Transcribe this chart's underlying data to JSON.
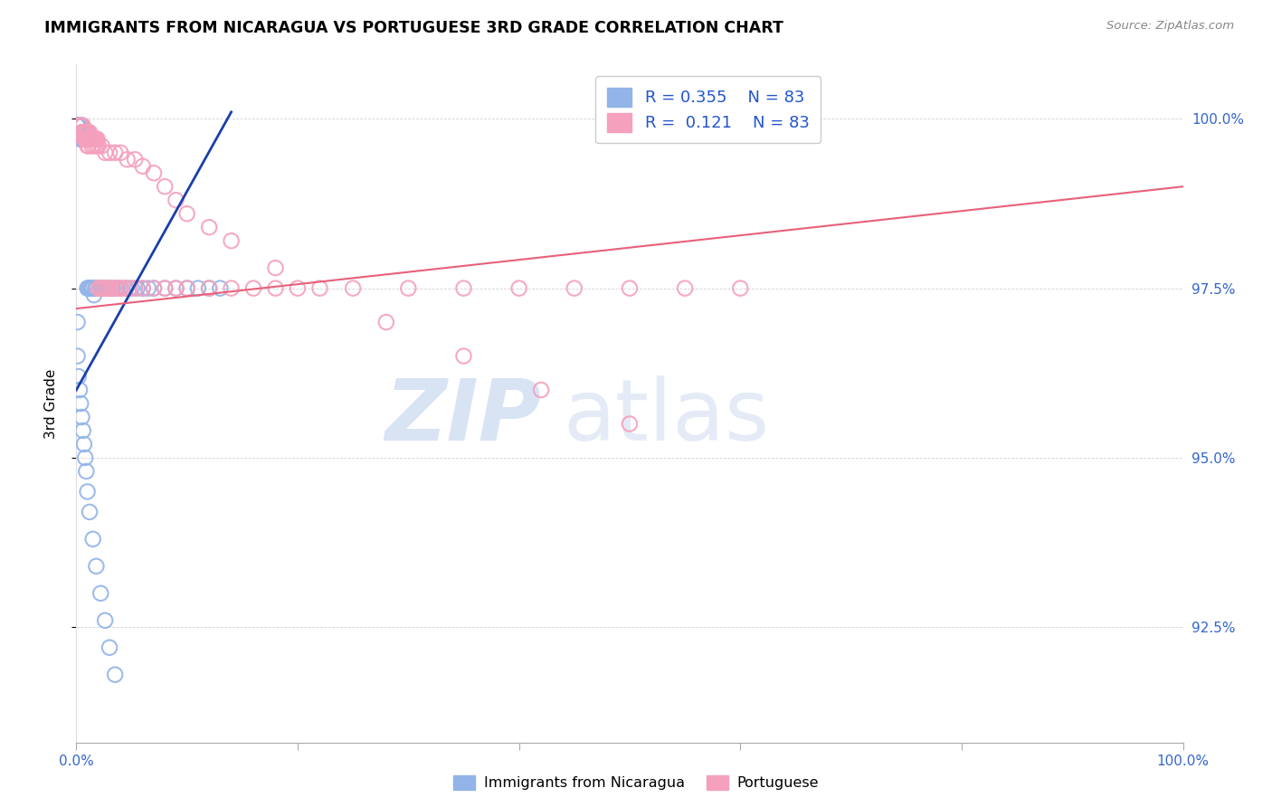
{
  "title": "IMMIGRANTS FROM NICARAGUA VS PORTUGUESE 3RD GRADE CORRELATION CHART",
  "source": "Source: ZipAtlas.com",
  "ylabel": "3rd Grade",
  "yticks": [
    "100.0%",
    "97.5%",
    "95.0%",
    "92.5%"
  ],
  "ytick_values": [
    1.0,
    0.975,
    0.95,
    0.925
  ],
  "xmin": 0.0,
  "xmax": 1.0,
  "ymin": 0.908,
  "ymax": 1.008,
  "legend_label1": "Immigrants from Nicaragua",
  "legend_label2": "Portuguese",
  "color_blue": "#92B4E8",
  "color_pink": "#F5A0BC",
  "color_trend_blue": "#1A3FAA",
  "color_trend_pink": "#E8607A",
  "watermark_zip": "ZIP",
  "watermark_atlas": "atlas",
  "blue_x": [
    0.001,
    0.001,
    0.001,
    0.001,
    0.002,
    0.002,
    0.002,
    0.002,
    0.003,
    0.003,
    0.003,
    0.003,
    0.003,
    0.003,
    0.003,
    0.003,
    0.004,
    0.004,
    0.004,
    0.004,
    0.005,
    0.005,
    0.005,
    0.005,
    0.005,
    0.006,
    0.006,
    0.006,
    0.007,
    0.007,
    0.007,
    0.008,
    0.008,
    0.009,
    0.009,
    0.01,
    0.01,
    0.011,
    0.012,
    0.013,
    0.014,
    0.015,
    0.016,
    0.017,
    0.018,
    0.02,
    0.022,
    0.025,
    0.028,
    0.03,
    0.033,
    0.036,
    0.04,
    0.045,
    0.05,
    0.055,
    0.06,
    0.065,
    0.07,
    0.08,
    0.09,
    0.1,
    0.11,
    0.12,
    0.13,
    0.001,
    0.001,
    0.002,
    0.003,
    0.004,
    0.005,
    0.006,
    0.007,
    0.008,
    0.009,
    0.01,
    0.012,
    0.015,
    0.018,
    0.022,
    0.026,
    0.03,
    0.035
  ],
  "blue_y": [
    0.999,
    0.999,
    0.999,
    0.999,
    0.999,
    0.999,
    0.999,
    0.999,
    0.999,
    0.999,
    0.999,
    0.999,
    0.999,
    0.999,
    0.999,
    0.999,
    0.999,
    0.999,
    0.997,
    0.997,
    0.999,
    0.999,
    0.998,
    0.998,
    0.997,
    0.998,
    0.998,
    0.997,
    0.998,
    0.997,
    0.997,
    0.998,
    0.997,
    0.998,
    0.997,
    0.998,
    0.975,
    0.975,
    0.975,
    0.975,
    0.975,
    0.975,
    0.974,
    0.975,
    0.975,
    0.975,
    0.975,
    0.975,
    0.975,
    0.975,
    0.975,
    0.975,
    0.975,
    0.975,
    0.975,
    0.975,
    0.975,
    0.975,
    0.975,
    0.975,
    0.975,
    0.975,
    0.975,
    0.975,
    0.975,
    0.97,
    0.965,
    0.962,
    0.96,
    0.958,
    0.956,
    0.954,
    0.952,
    0.95,
    0.948,
    0.945,
    0.942,
    0.938,
    0.934,
    0.93,
    0.926,
    0.922,
    0.918
  ],
  "pink_x": [
    0.003,
    0.004,
    0.005,
    0.006,
    0.007,
    0.007,
    0.008,
    0.008,
    0.009,
    0.01,
    0.01,
    0.011,
    0.011,
    0.012,
    0.012,
    0.013,
    0.014,
    0.015,
    0.016,
    0.017,
    0.018,
    0.019,
    0.02,
    0.022,
    0.024,
    0.026,
    0.028,
    0.03,
    0.032,
    0.035,
    0.038,
    0.04,
    0.044,
    0.048,
    0.053,
    0.06,
    0.07,
    0.08,
    0.09,
    0.1,
    0.12,
    0.14,
    0.16,
    0.18,
    0.2,
    0.25,
    0.3,
    0.35,
    0.4,
    0.45,
    0.5,
    0.55,
    0.6,
    0.007,
    0.008,
    0.009,
    0.01,
    0.011,
    0.012,
    0.014,
    0.016,
    0.018,
    0.02,
    0.023,
    0.026,
    0.03,
    0.035,
    0.04,
    0.046,
    0.053,
    0.06,
    0.07,
    0.08,
    0.09,
    0.1,
    0.12,
    0.14,
    0.18,
    0.22,
    0.28,
    0.35,
    0.42,
    0.5
  ],
  "pink_y": [
    0.999,
    0.999,
    0.998,
    0.999,
    0.998,
    0.997,
    0.998,
    0.997,
    0.998,
    0.998,
    0.997,
    0.998,
    0.997,
    0.998,
    0.997,
    0.997,
    0.997,
    0.997,
    0.997,
    0.997,
    0.997,
    0.997,
    0.975,
    0.975,
    0.975,
    0.975,
    0.975,
    0.975,
    0.975,
    0.975,
    0.975,
    0.975,
    0.975,
    0.975,
    0.975,
    0.975,
    0.975,
    0.975,
    0.975,
    0.975,
    0.975,
    0.975,
    0.975,
    0.975,
    0.975,
    0.975,
    0.975,
    0.975,
    0.975,
    0.975,
    0.975,
    0.975,
    0.975,
    0.998,
    0.997,
    0.997,
    0.996,
    0.996,
    0.997,
    0.996,
    0.996,
    0.996,
    0.996,
    0.996,
    0.995,
    0.995,
    0.995,
    0.995,
    0.994,
    0.994,
    0.993,
    0.992,
    0.99,
    0.988,
    0.986,
    0.984,
    0.982,
    0.978,
    0.975,
    0.97,
    0.965,
    0.96,
    0.955
  ],
  "blue_trend_x": [
    0.0,
    0.14
  ],
  "blue_trend_y": [
    0.96,
    1.001
  ],
  "pink_trend_x": [
    0.0,
    1.0
  ],
  "pink_trend_y": [
    0.972,
    0.99
  ]
}
